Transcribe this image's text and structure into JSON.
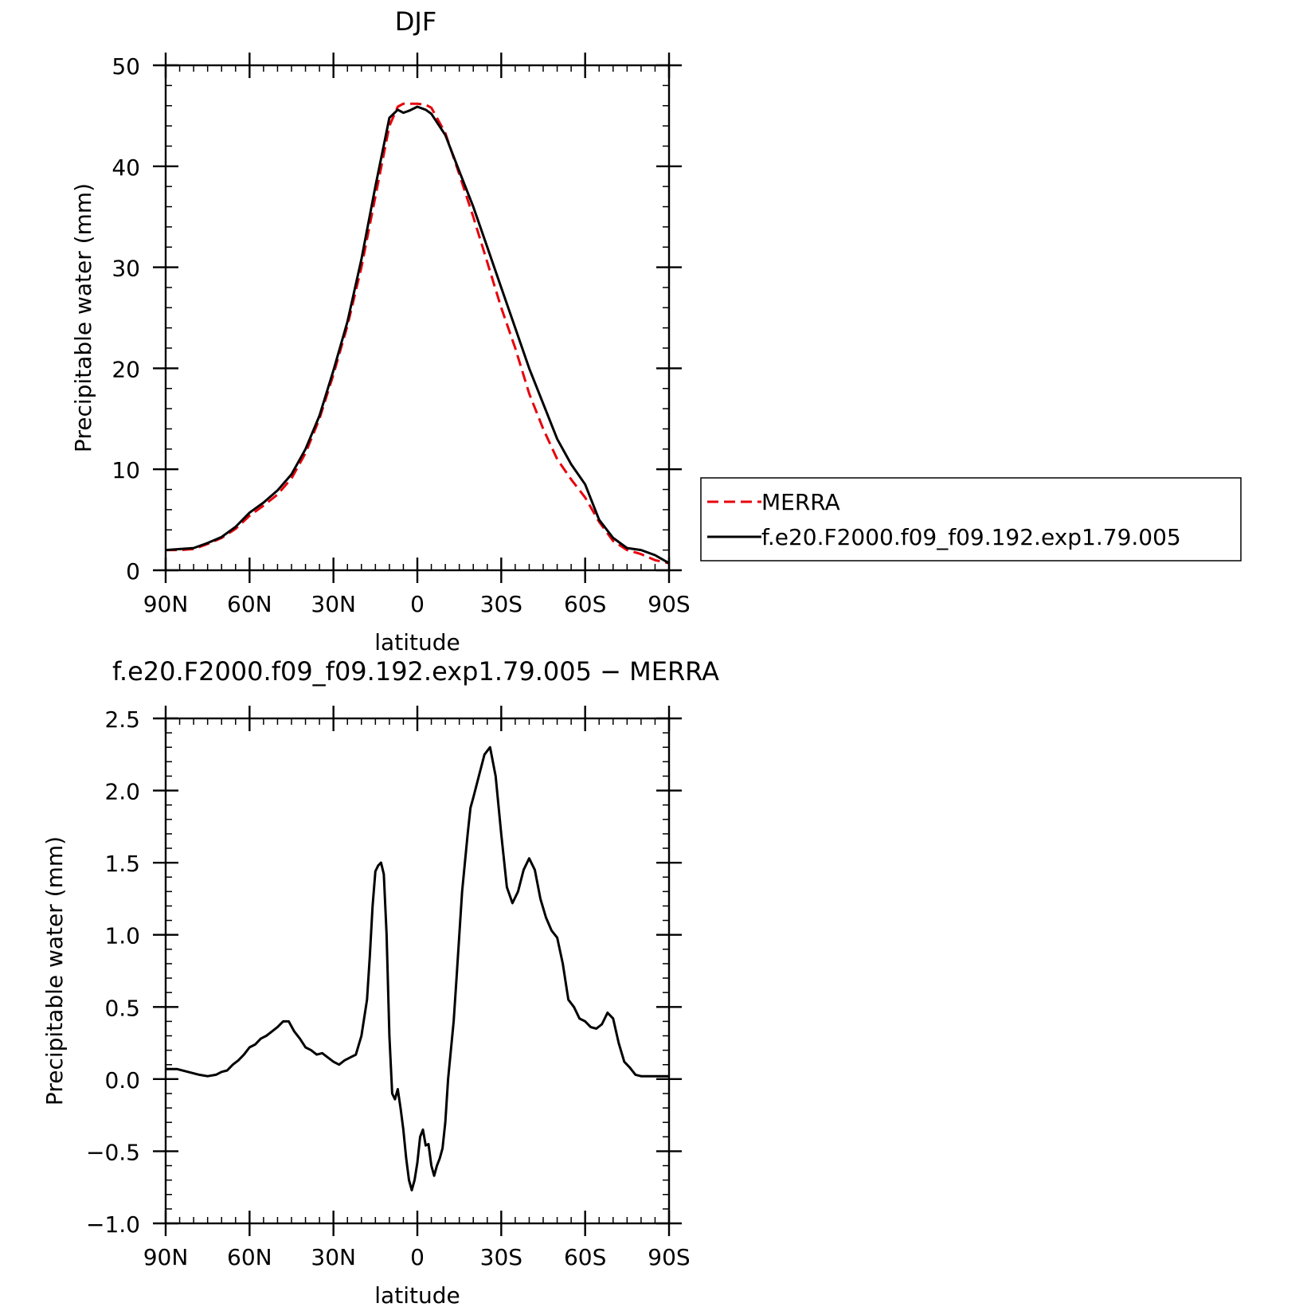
{
  "chart_data": [
    {
      "type": "line",
      "title": "DJF",
      "xlabel": "latitude",
      "ylabel": "Precipitable water (mm)",
      "xlim": [
        90,
        -90
      ],
      "ylim": [
        0,
        50
      ],
      "xticks": [
        90,
        60,
        30,
        0,
        -30,
        -60,
        -90
      ],
      "xtick_labels": [
        "90N",
        "60N",
        "30N",
        "0",
        "30S",
        "60S",
        "90S"
      ],
      "yticks": [
        0,
        10,
        20,
        30,
        40,
        50
      ],
      "ytick_labels": [
        "0",
        "10",
        "20",
        "30",
        "40",
        "50"
      ],
      "legend_position": "right",
      "x": [
        90,
        85,
        80,
        75,
        70,
        65,
        60,
        55,
        50,
        45,
        40,
        35,
        30,
        25,
        20,
        15,
        10,
        7,
        5,
        3,
        0,
        -3,
        -5,
        -10,
        -15,
        -20,
        -25,
        -30,
        -35,
        -40,
        -45,
        -50,
        -55,
        -60,
        -65,
        -70,
        -75,
        -80,
        -85,
        -90
      ],
      "series": [
        {
          "name": "MERRA",
          "color": "#e8000b",
          "dash": "dashed",
          "values": [
            2.0,
            2.0,
            2.1,
            2.6,
            3.2,
            4.1,
            5.4,
            6.4,
            7.5,
            9.1,
            11.6,
            15.0,
            19.4,
            24.2,
            30.0,
            37.0,
            44.0,
            45.9,
            46.2,
            46.2,
            46.2,
            46.1,
            45.8,
            43.3,
            39.2,
            35.0,
            30.5,
            26.0,
            22.0,
            17.5,
            14.0,
            11.0,
            9.0,
            7.2,
            4.8,
            2.9,
            2.0,
            1.6,
            1.0,
            0.7
          ]
        },
        {
          "name": "f.e20.F2000.f09_f09.192.exp1.79.005",
          "color": "#000000",
          "dash": "solid",
          "values": [
            2.0,
            2.1,
            2.2,
            2.7,
            3.3,
            4.3,
            5.7,
            6.7,
            7.9,
            9.5,
            12.0,
            15.3,
            19.8,
            24.6,
            30.8,
            38.0,
            44.8,
            45.6,
            45.3,
            45.5,
            45.9,
            45.6,
            45.2,
            43.1,
            39.5,
            36.0,
            32.0,
            28.0,
            24.0,
            20.0,
            16.5,
            13.0,
            10.5,
            8.5,
            5.0,
            3.2,
            2.2,
            2.0,
            1.5,
            0.7
          ]
        }
      ]
    },
    {
      "type": "line",
      "title": "f.e20.F2000.f09_f09.192.exp1.79.005 − MERRA",
      "xlabel": "latitude",
      "ylabel": "Precipitable water (mm)",
      "xlim": [
        90,
        -90
      ],
      "ylim": [
        -1.0,
        2.5
      ],
      "xticks": [
        90,
        60,
        30,
        0,
        -30,
        -60,
        -90
      ],
      "xtick_labels": [
        "90N",
        "60N",
        "30N",
        "0",
        "30S",
        "60S",
        "90S"
      ],
      "yticks": [
        -1.0,
        -0.5,
        0.0,
        0.5,
        1.0,
        1.5,
        2.0,
        2.5
      ],
      "ytick_labels": [
        "−1.0",
        "−0.5",
        "0.0",
        "0.5",
        "1.0",
        "1.5",
        "2.0",
        "2.5"
      ],
      "x": [
        90,
        86,
        82,
        78,
        75,
        72,
        70,
        68,
        66,
        64,
        62,
        60,
        58,
        56,
        54,
        52,
        50,
        48,
        46,
        44,
        42,
        40,
        38,
        36,
        34,
        32,
        30,
        28,
        26,
        24,
        22,
        20,
        18,
        17,
        16,
        15,
        14,
        13,
        12,
        11,
        10,
        9,
        8,
        7,
        6,
        5,
        4,
        3,
        2,
        1,
        0,
        -1,
        -2,
        -3,
        -4,
        -5,
        -6,
        -7,
        -8,
        -9,
        -10,
        -11,
        -12,
        -13,
        -14,
        -15,
        -16,
        -17,
        -18,
        -19,
        -20,
        -22,
        -24,
        -26,
        -28,
        -30,
        -32,
        -34,
        -36,
        -38,
        -40,
        -42,
        -44,
        -46,
        -48,
        -50,
        -52,
        -54,
        -56,
        -58,
        -60,
        -62,
        -64,
        -66,
        -68,
        -70,
        -72,
        -74,
        -76,
        -78,
        -80,
        -82,
        -84,
        -86,
        -88,
        -90
      ],
      "values": [
        0.07,
        0.07,
        0.05,
        0.03,
        0.02,
        0.03,
        0.05,
        0.06,
        0.1,
        0.13,
        0.17,
        0.22,
        0.24,
        0.28,
        0.3,
        0.33,
        0.36,
        0.4,
        0.4,
        0.33,
        0.28,
        0.22,
        0.2,
        0.17,
        0.18,
        0.15,
        0.12,
        0.1,
        0.13,
        0.15,
        0.17,
        0.3,
        0.55,
        0.85,
        1.2,
        1.44,
        1.48,
        1.5,
        1.42,
        1.0,
        0.3,
        -0.1,
        -0.14,
        -0.07,
        -0.2,
        -0.35,
        -0.55,
        -0.7,
        -0.77,
        -0.7,
        -0.58,
        -0.4,
        -0.35,
        -0.46,
        -0.45,
        -0.6,
        -0.67,
        -0.6,
        -0.55,
        -0.48,
        -0.3,
        0.0,
        0.2,
        0.4,
        0.7,
        1.0,
        1.3,
        1.5,
        1.7,
        1.88,
        1.95,
        2.1,
        2.25,
        2.3,
        2.1,
        1.7,
        1.33,
        1.22,
        1.3,
        1.45,
        1.53,
        1.45,
        1.25,
        1.12,
        1.03,
        0.98,
        0.8,
        0.55,
        0.5,
        0.42,
        0.4,
        0.36,
        0.35,
        0.38,
        0.46,
        0.42,
        0.25,
        0.12,
        0.08,
        0.03,
        0.02,
        0.02,
        0.02,
        0.02,
        0.02,
        0.02
      ]
    }
  ]
}
